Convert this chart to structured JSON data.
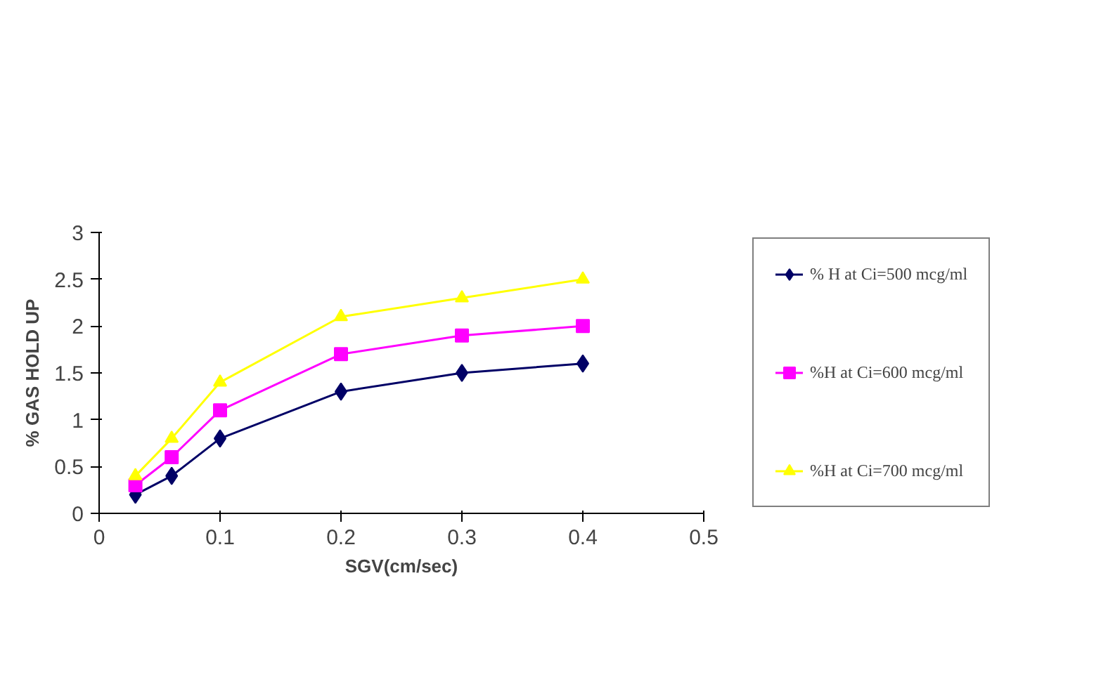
{
  "chart_data": {
    "type": "line",
    "xlabel": "SGV(cm/sec)",
    "ylabel": "% GAS HOLD UP",
    "x": [
      0.03,
      0.06,
      0.1,
      0.2,
      0.3,
      0.4
    ],
    "series": [
      {
        "name": "% H at Ci=500 mcg/ml",
        "color": "#000066",
        "marker": "diamond",
        "values": [
          0.2,
          0.4,
          0.8,
          1.3,
          1.5,
          1.6
        ]
      },
      {
        "name": "%H at Ci=600 mcg/ml",
        "color": "#ff00ff",
        "marker": "square",
        "values": [
          0.3,
          0.6,
          1.1,
          1.7,
          1.9,
          2.0
        ]
      },
      {
        "name": "%H at Ci=700 mcg/ml",
        "color": "#ffff00",
        "marker": "triangle",
        "values": [
          0.4,
          0.8,
          1.4,
          2.1,
          2.3,
          2.5
        ]
      }
    ],
    "xlim": [
      0,
      0.5
    ],
    "xticks": [
      0,
      0.1,
      0.2,
      0.3,
      0.4,
      0.5
    ],
    "ylim": [
      0,
      3
    ],
    "yticks": [
      0,
      0.5,
      1,
      1.5,
      2,
      2.5,
      3
    ],
    "grid": false,
    "legend": "right"
  }
}
